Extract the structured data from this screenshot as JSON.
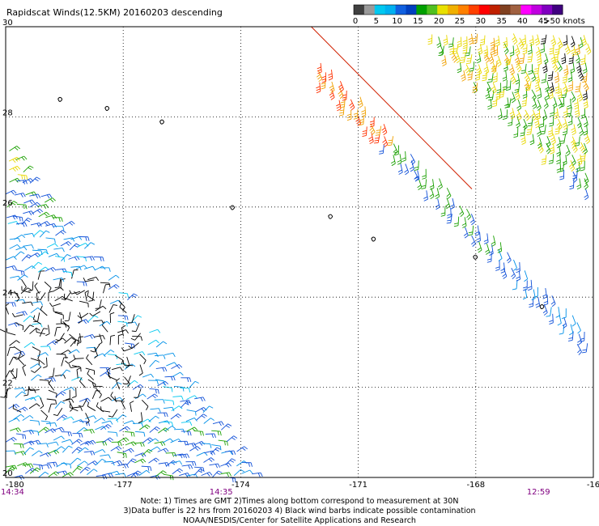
{
  "title": "Rapidscat Winds(12.5KM) 20160203 descending",
  "colorbar": {
    "colors": [
      "#404040",
      "#9a9a9a",
      "#00c8f0",
      "#00b0f0",
      "#1060e0",
      "#0040c0",
      "#00a000",
      "#50c020",
      "#e8e000",
      "#f0b000",
      "#ff8000",
      "#ff4000",
      "#ff0000",
      "#c02000",
      "#804020",
      "#a06040",
      "#ff00ff",
      "#c000e0",
      "#8000c0",
      "#400080"
    ],
    "labels": [
      "0",
      "5",
      "10",
      "15",
      "20",
      "25",
      "30",
      "35",
      "40",
      "45",
      ">50 knots"
    ]
  },
  "chart_data": {
    "type": "wind-barb swath map",
    "title": "Rapidscat Winds(12.5KM) 20160203 descending",
    "x_ticks": [
      "-180",
      "-177",
      "-174",
      "-171",
      "-168",
      "-16"
    ],
    "y_ticks": [
      "30",
      "28",
      "26",
      "24",
      "22",
      "20"
    ],
    "xlim": [
      -180,
      -165
    ],
    "ylim": [
      20,
      30
    ],
    "grid": true,
    "speed_scale_knots": [
      0,
      5,
      10,
      15,
      20,
      25,
      30,
      35,
      40,
      45,
      50
    ],
    "time_labels": [
      "14:34",
      "14:35",
      "12:59"
    ],
    "swaths": [
      {
        "region": "lower-left triangle (180W-174W, 20N-27.5N)",
        "dominant_speed_knots": "10-20"
      },
      {
        "region": "upper-right band (172W-165W, 20.8N-30N)",
        "dominant_speed_knots": "15-30"
      }
    ],
    "islands": [
      {
        "lon": -178.6,
        "lat": 28.4
      },
      {
        "lon": -177.4,
        "lat": 28.2
      },
      {
        "lon": -176.0,
        "lat": 27.9
      },
      {
        "lon": -174.2,
        "lat": 26.0
      },
      {
        "lon": -171.7,
        "lat": 25.8
      },
      {
        "lon": -170.6,
        "lat": 25.3
      },
      {
        "lon": -168.0,
        "lat": 24.9
      },
      {
        "lon": -166.3,
        "lat": 23.8
      }
    ]
  },
  "notes": {
    "line1": "Note: 1) Times are GMT 2)Times along bottom correspond to measurement at 30N",
    "line2": "3)Data buffer is 22 hrs from 20160203 4) Black wind barbs indicate possible contamination",
    "line3": "NOAA/NESDIS/Center for Satellite Applications and Research"
  }
}
